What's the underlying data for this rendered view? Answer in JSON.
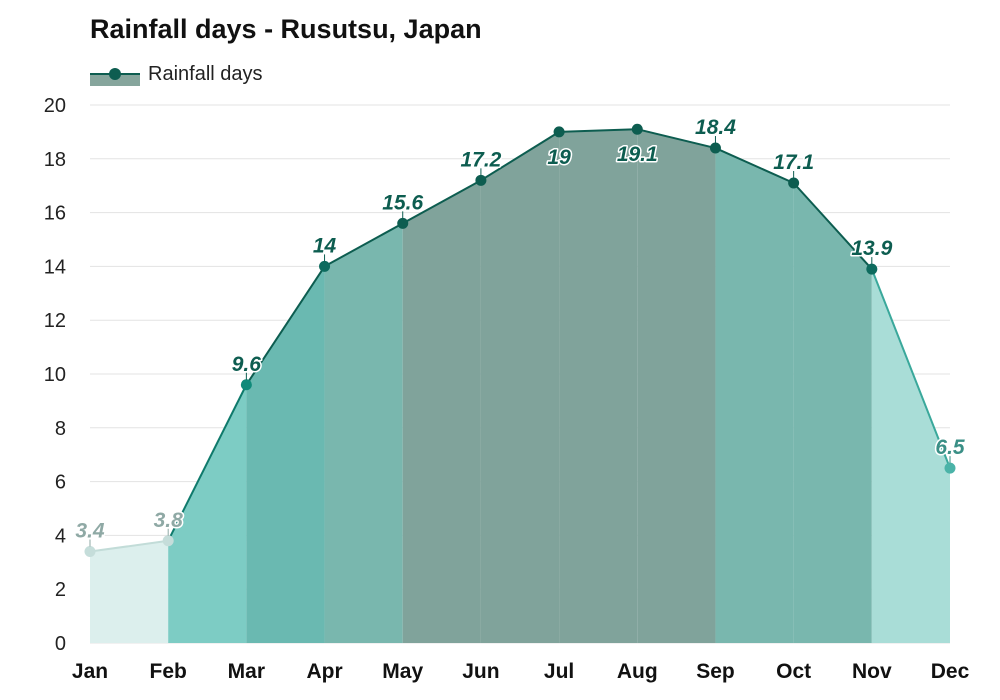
{
  "chart_data": {
    "type": "area",
    "title": "Rainfall days - Rusutsu, Japan",
    "xlabel": "",
    "ylabel": "",
    "categories": [
      "Jan",
      "Feb",
      "Mar",
      "Apr",
      "May",
      "Jun",
      "Jul",
      "Aug",
      "Sep",
      "Oct",
      "Nov",
      "Dec"
    ],
    "series": [
      {
        "name": "Rainfall days",
        "values": [
          3.4,
          3.8,
          9.6,
          14,
          15.6,
          17.2,
          19,
          19.1,
          18.4,
          17.1,
          13.9,
          6.5
        ]
      }
    ],
    "value_labels": [
      "3.4",
      "3.8",
      "9.6",
      "14",
      "15.6",
      "17.2",
      "19",
      "19.1",
      "18.4",
      "17.1",
      "13.9",
      "6.5"
    ],
    "ylim": [
      0,
      20
    ],
    "yticks": [
      "0",
      "2",
      "4",
      "6",
      "8",
      "10",
      "12",
      "14",
      "16",
      "18",
      "20"
    ],
    "grid": true,
    "legend_position": "top-left",
    "colors": {
      "line": "#0d5d50",
      "legend_fill": "#86a59c",
      "grid": "#e3e3e3",
      "bands": [
        "#dcefed",
        "#7dccc4",
        "#6ab9b1",
        "#79b7ae",
        "#80a39b",
        "#80a39b",
        "#80a39b",
        "#80a39b",
        "#79b7ae",
        "#79b7ae",
        "#a9ddd7",
        "#a9ddd7"
      ],
      "segment_lines": [
        "#c2dcd8",
        "#0f7a6c",
        "#0d5d50",
        "#0d5d50",
        "#0d5d50",
        "#0d5d50",
        "#0d5d50",
        "#0d5d50",
        "#0d5d50",
        "#0d5d50",
        "#3aa89b"
      ],
      "markers": [
        "#c5ddda",
        "#c5ddda",
        "#108a7a",
        "#0d6b5e",
        "#0d5d50",
        "#0d5d50",
        "#0d5d50",
        "#0d5d50",
        "#0d5d50",
        "#0d5d50",
        "#0d6b5e",
        "#4bb3a8"
      ],
      "labels": [
        "#8fa9a5",
        "#8fa9a5",
        "#0d5d50",
        "#0d5d50",
        "#0d5d50",
        "#0d5d50",
        "#0d5d50",
        "#0d5d50",
        "#0d5d50",
        "#0d5d50",
        "#0d5d50",
        "#3a8f86"
      ]
    }
  }
}
